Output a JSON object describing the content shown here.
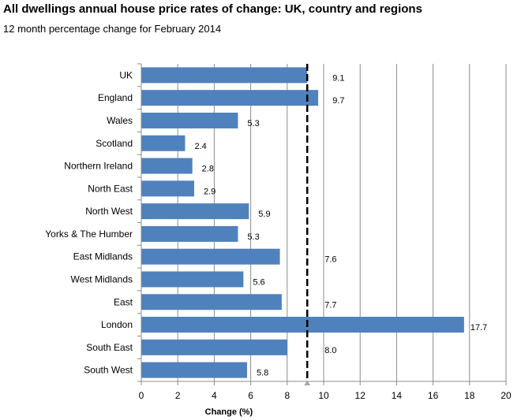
{
  "chart_data": {
    "type": "bar",
    "orientation": "horizontal",
    "title": "All dwellings annual house price rates of change: UK, country and regions",
    "subtitle": "12 month percentage change for February 2014",
    "xlabel": "Change (%)",
    "ylabel": "",
    "xlim": [
      0,
      20
    ],
    "xticks": [
      0,
      2,
      4,
      6,
      8,
      10,
      12,
      14,
      16,
      18,
      20
    ],
    "grid": "vertical",
    "categories": [
      "UK",
      "England",
      "Wales",
      "Scotland",
      "Northern Ireland",
      "North East",
      "North West",
      "Yorks & The Humber",
      "East Midlands",
      "West Midlands",
      "East",
      "London",
      "South East",
      "South West"
    ],
    "values": [
      9.1,
      9.7,
      5.3,
      2.4,
      2.8,
      2.9,
      5.9,
      5.3,
      7.6,
      5.6,
      7.7,
      17.7,
      8.0,
      5.8
    ],
    "value_labels": [
      "9.1",
      "9.7",
      "5.3",
      "2.4",
      "2.8",
      "2.9",
      "5.9",
      "5.3",
      "7.6",
      "5.6",
      "7.7",
      "17.7",
      "8.0",
      "5.8"
    ],
    "reference_line": {
      "x": 9.1,
      "style": "dashed"
    },
    "bar_color": "#4f81bd",
    "grid_color": "#8c8c8c",
    "reference_color": "#000000"
  }
}
